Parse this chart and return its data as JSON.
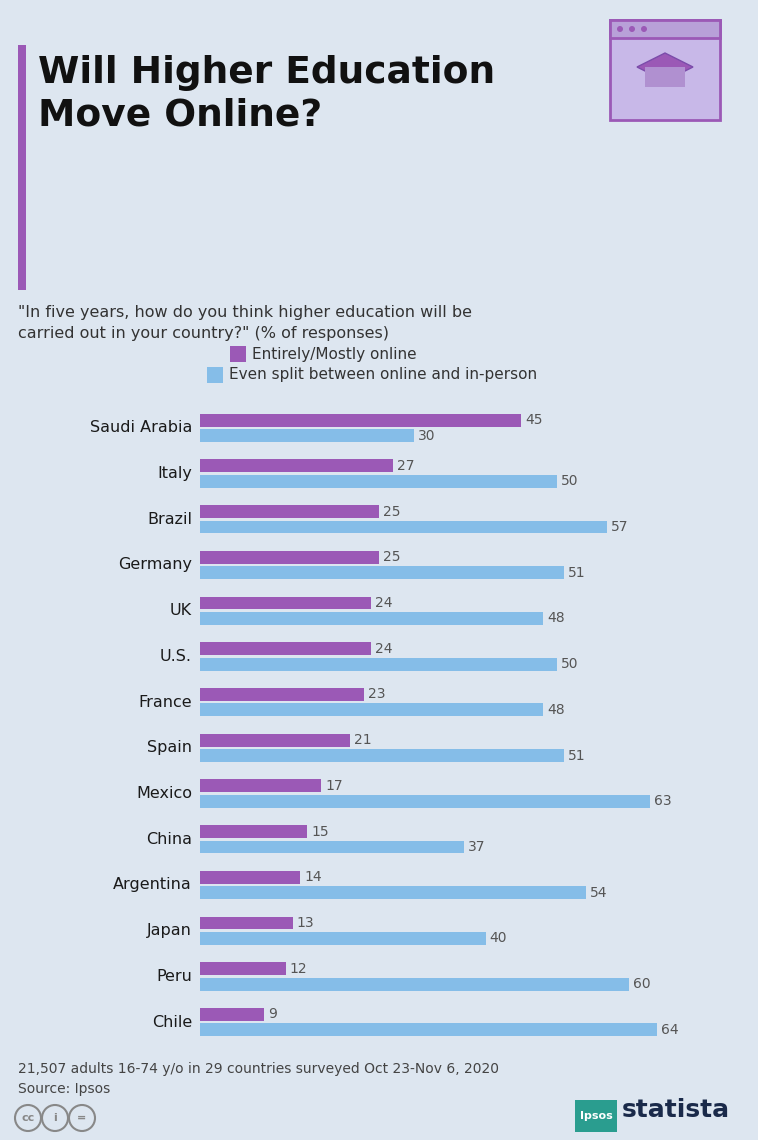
{
  "title_line1": "Will Higher Education",
  "title_line2": "Move Online?",
  "subtitle": "\"In five years, how do you think higher education will be\ncarried out in your country?\" (% of responses)",
  "legend_online": "Entirely/Mostly online",
  "legend_split": "Even split between online and in-person",
  "footnote1": "21,507 adults 16-74 y/o in 29 countries surveyed Oct 23-Nov 6, 2020",
  "footnote2": "Source: Ipsos",
  "countries": [
    "Saudi Arabia",
    "Italy",
    "Brazil",
    "Germany",
    "UK",
    "U.S.",
    "France",
    "Spain",
    "Mexico",
    "China",
    "Argentina",
    "Japan",
    "Peru",
    "Chile"
  ],
  "online_values": [
    45,
    27,
    25,
    25,
    24,
    24,
    23,
    21,
    17,
    15,
    14,
    13,
    12,
    9
  ],
  "split_values": [
    30,
    50,
    57,
    51,
    48,
    50,
    48,
    51,
    63,
    37,
    54,
    40,
    60,
    64
  ],
  "color_online": "#9b59b6",
  "color_split": "#85bde8",
  "background_color": "#dde6f0",
  "title_color": "#1a1a1a",
  "accent_bar_color": "#7c4daa",
  "label_color": "#444444",
  "value_label_color": "#555555"
}
